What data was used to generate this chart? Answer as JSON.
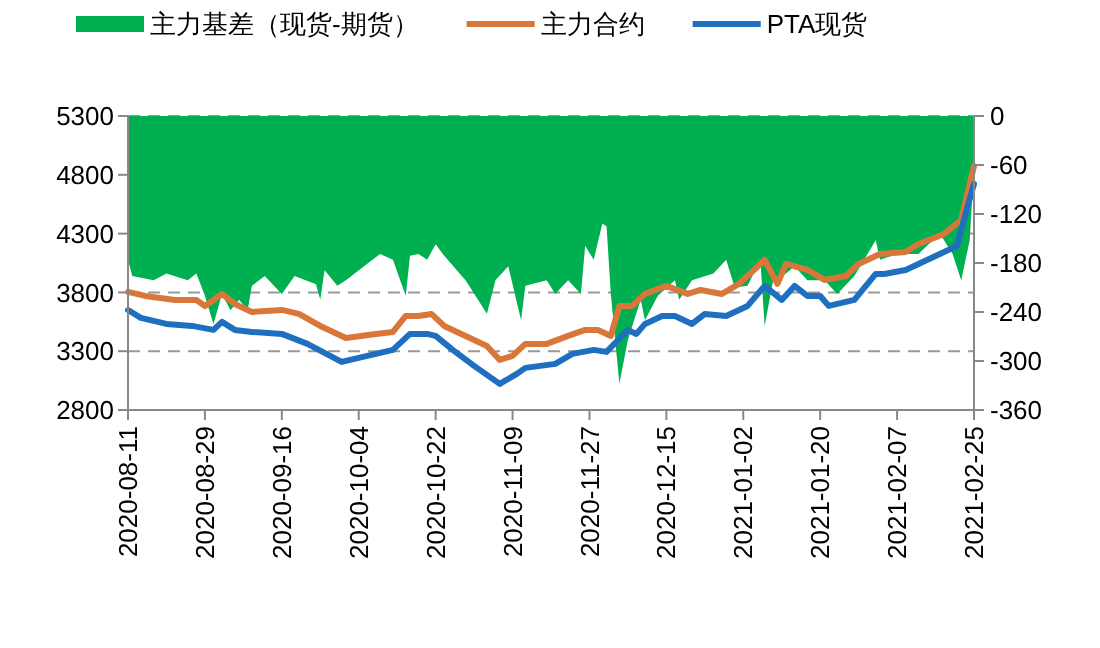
{
  "chart_data": {
    "type": "line",
    "xlim": [
      "2020-08-11",
      "2021-02-25"
    ],
    "xticks": [
      "2020-08-11",
      "2020-08-29",
      "2020-09-16",
      "2020-10-04",
      "2020-10-22",
      "2020-11-09",
      "2020-11-27",
      "2020-12-15",
      "2021-01-02",
      "2021-01-20",
      "2021-02-07",
      "2021-02-25"
    ],
    "ylim": [
      2800,
      5300
    ],
    "yticks": [
      2800,
      3300,
      3800,
      4300,
      4800,
      5300
    ],
    "y2lim": [
      -360,
      0
    ],
    "y2ticks": [
      -360,
      -300,
      -240,
      -180,
      -120,
      -60,
      0
    ],
    "grid": "y",
    "legend": "top",
    "series": [
      {
        "name": "主力基差（现货-期货）",
        "type": "area",
        "axis": "y2",
        "color": "#00b050",
        "x": [
          "2020-08-11",
          "2020-08-12",
          "2020-08-17",
          "2020-08-20",
          "2020-08-25",
          "2020-08-27",
          "2020-08-29",
          "2020-08-31",
          "2020-09-02",
          "2020-09-04",
          "2020-09-06",
          "2020-09-08",
          "2020-09-09",
          "2020-09-12",
          "2020-09-16",
          "2020-09-19",
          "2020-09-24",
          "2020-09-25",
          "2020-09-26",
          "2020-09-29",
          "2020-10-01",
          "2020-10-06",
          "2020-10-09",
          "2020-10-12",
          "2020-10-15",
          "2020-10-16",
          "2020-10-18",
          "2020-10-20",
          "2020-10-22",
          "2020-10-24",
          "2020-10-29",
          "2020-11-03",
          "2020-11-05",
          "2020-11-08",
          "2020-11-11",
          "2020-11-12",
          "2020-11-17",
          "2020-11-19",
          "2020-11-22",
          "2020-11-25",
          "2020-11-26",
          "2020-11-28",
          "2020-11-30",
          "2020-12-01",
          "2020-12-02",
          "2020-12-04",
          "2020-12-06",
          "2020-12-09",
          "2020-12-10",
          "2020-12-13",
          "2020-12-17",
          "2020-12-18",
          "2020-12-21",
          "2020-12-26",
          "2020-12-29",
          "2020-12-31",
          "2021-01-03",
          "2021-01-06",
          "2021-01-07",
          "2021-01-09",
          "2021-01-12",
          "2021-01-14",
          "2021-01-17",
          "2021-01-21",
          "2021-01-24",
          "2021-01-28",
          "2021-02-02",
          "2021-02-03",
          "2021-02-07",
          "2021-02-12",
          "2021-02-17",
          "2021-02-20",
          "2021-02-22",
          "2021-02-24",
          "2021-02-25"
        ],
        "values": [
          -176,
          -196,
          -201,
          -193,
          -201,
          -193,
          -220,
          -255,
          -218,
          -238,
          -225,
          -238,
          -208,
          -196,
          -218,
          -196,
          -206,
          -225,
          -189,
          -208,
          -201,
          -181,
          -169,
          -176,
          -220,
          -171,
          -169,
          -176,
          -157,
          -171,
          -201,
          -242,
          -201,
          -184,
          -250,
          -208,
          -201,
          -218,
          -201,
          -218,
          -159,
          -176,
          -132,
          -135,
          -218,
          -328,
          -274,
          -225,
          -250,
          -220,
          -201,
          -225,
          -201,
          -193,
          -176,
          -210,
          -208,
          -176,
          -257,
          -201,
          -193,
          -184,
          -201,
          -201,
          -218,
          -196,
          -152,
          -176,
          -169,
          -169,
          -144,
          -169,
          -201,
          -152,
          -61
        ]
      },
      {
        "name": "主力合约",
        "color": "#d9773a",
        "x": [
          "2020-08-11",
          "2020-08-15",
          "2020-08-22",
          "2020-08-27",
          "2020-08-29",
          "2020-09-02",
          "2020-09-05",
          "2020-09-09",
          "2020-09-16",
          "2020-09-20",
          "2020-09-25",
          "2020-10-01",
          "2020-10-08",
          "2020-10-12",
          "2020-10-15",
          "2020-10-18",
          "2020-10-21",
          "2020-10-24",
          "2020-10-29",
          "2020-11-03",
          "2020-11-06",
          "2020-11-09",
          "2020-11-12",
          "2020-11-17",
          "2020-11-22",
          "2020-11-26",
          "2020-11-29",
          "2020-12-02",
          "2020-12-04",
          "2020-12-07",
          "2020-12-10",
          "2020-12-15",
          "2020-12-20",
          "2020-12-23",
          "2020-12-28",
          "2021-01-01",
          "2021-01-07",
          "2021-01-10",
          "2021-01-12",
          "2021-01-17",
          "2021-01-21",
          "2021-01-26",
          "2021-01-29",
          "2021-02-03",
          "2021-02-09",
          "2021-02-12",
          "2021-02-18",
          "2021-02-22",
          "2021-02-25"
        ],
        "values": [
          3804,
          3770,
          3736,
          3736,
          3685,
          3787,
          3702,
          3634,
          3651,
          3617,
          3515,
          3413,
          3447,
          3464,
          3600,
          3600,
          3617,
          3515,
          3430,
          3345,
          3226,
          3260,
          3362,
          3362,
          3430,
          3481,
          3481,
          3430,
          3685,
          3685,
          3787,
          3855,
          3787,
          3821,
          3787,
          3872,
          4076,
          3872,
          4042,
          3991,
          3906,
          3940,
          4042,
          4127,
          4144,
          4212,
          4297,
          4416,
          4875
        ]
      },
      {
        "name": "PTA现货",
        "color": "#1f6fc0",
        "x": [
          "2020-08-11",
          "2020-08-14",
          "2020-08-20",
          "2020-08-26",
          "2020-08-31",
          "2020-09-02",
          "2020-09-05",
          "2020-09-09",
          "2020-09-16",
          "2020-09-22",
          "2020-09-30",
          "2020-10-12",
          "2020-10-16",
          "2020-10-20",
          "2020-10-22",
          "2020-10-26",
          "2020-10-31",
          "2020-11-06",
          "2020-11-10",
          "2020-11-12",
          "2020-11-19",
          "2020-11-23",
          "2020-11-28",
          "2020-12-01",
          "2020-12-06",
          "2020-12-08",
          "2020-12-10",
          "2020-12-14",
          "2020-12-17",
          "2020-12-21",
          "2020-12-24",
          "2020-12-29",
          "2021-01-01",
          "2021-01-03",
          "2021-01-07",
          "2021-01-11",
          "2021-01-14",
          "2021-01-17",
          "2021-01-20",
          "2021-01-22",
          "2021-01-28",
          "2021-02-02",
          "2021-02-04",
          "2021-02-09",
          "2021-02-17",
          "2021-02-21",
          "2021-02-23",
          "2021-02-25"
        ],
        "values": [
          3650,
          3583,
          3532,
          3515,
          3481,
          3549,
          3481,
          3464,
          3447,
          3362,
          3209,
          3311,
          3447,
          3447,
          3430,
          3311,
          3175,
          3022,
          3107,
          3158,
          3192,
          3277,
          3311,
          3294,
          3481,
          3447,
          3532,
          3600,
          3600,
          3532,
          3617,
          3600,
          3650,
          3685,
          3855,
          3736,
          3855,
          3770,
          3770,
          3685,
          3736,
          3957,
          3957,
          3991,
          4127,
          4195,
          4467,
          4722
        ]
      }
    ]
  }
}
